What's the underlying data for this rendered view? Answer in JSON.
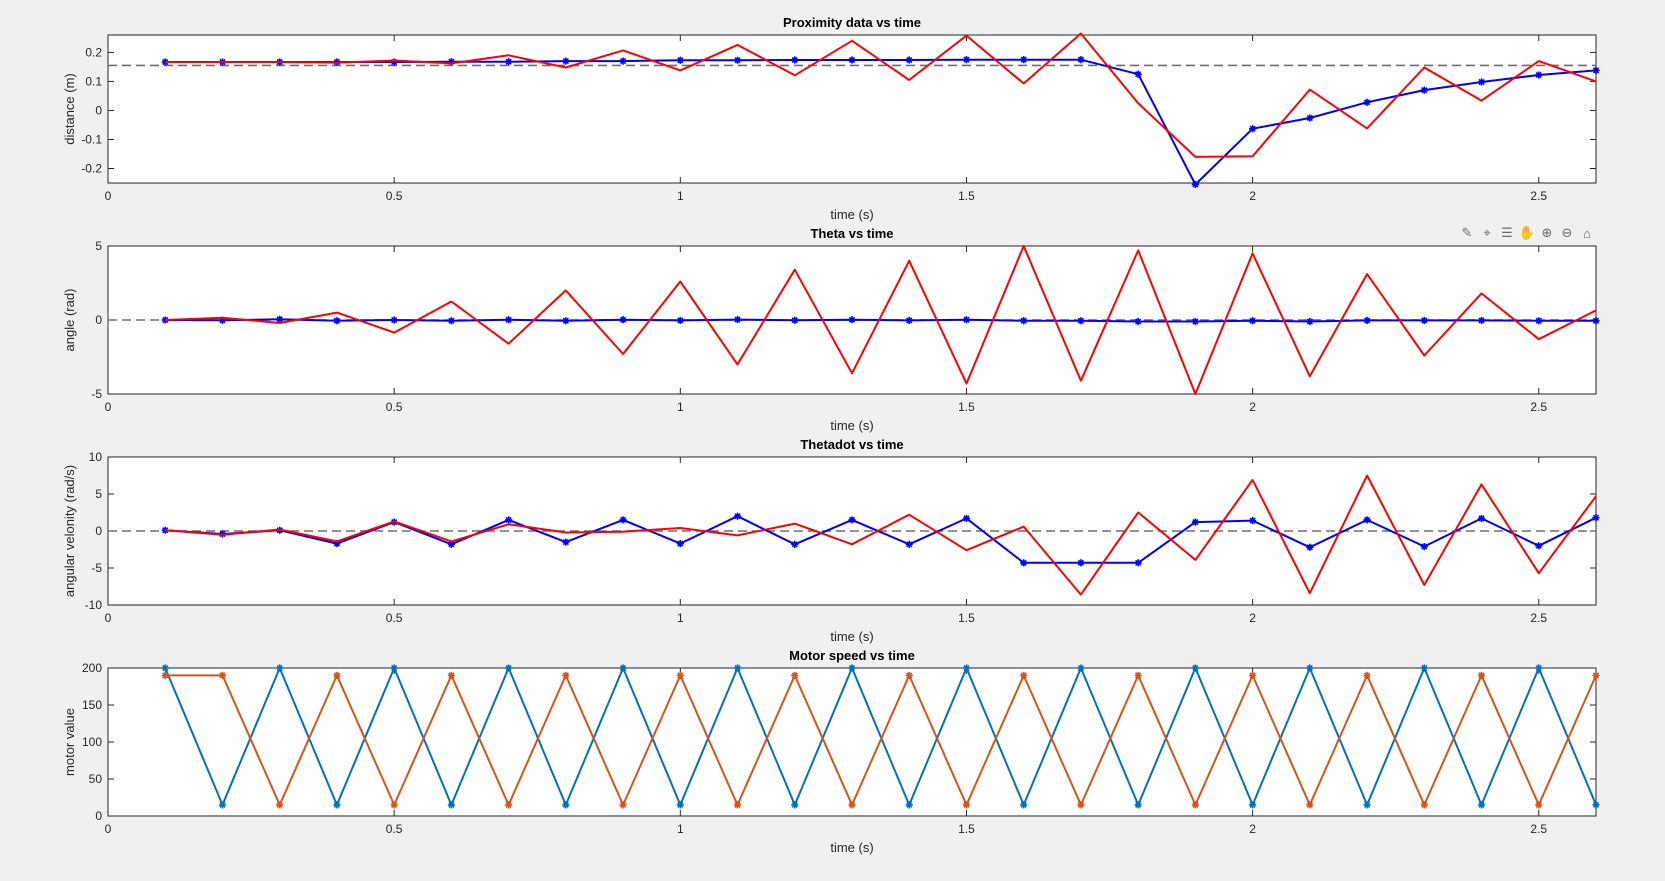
{
  "toolbar": {
    "icons": [
      "brush-icon",
      "datatip-icon",
      "legend-icon",
      "pan-icon",
      "zoom-in-icon",
      "zoom-out-icon",
      "home-icon"
    ]
  },
  "chart_data": [
    {
      "type": "line",
      "title": "Proximity data vs time",
      "xlabel": "time (s)",
      "ylabel": "distance (m)",
      "xlim": [
        0,
        2.6
      ],
      "ylim": [
        -0.25,
        0.26
      ],
      "xticks": [
        0,
        0.5,
        1,
        1.5,
        2,
        2.5
      ],
      "yticks": [
        -0.2,
        -0.1,
        0,
        0.1,
        0.2
      ],
      "xtick_labels": [
        "0",
        "0.5",
        "1",
        "1.5",
        "2",
        "2.5"
      ],
      "ytick_labels": [
        "-0.2",
        "-0.1",
        "0",
        "0.1",
        "0.2"
      ],
      "grid": false,
      "reference_line": {
        "y": 0.155,
        "style": "dashed",
        "color": "#6e6e6e"
      },
      "series": [
        {
          "color": "#0000ff",
          "marker": "star",
          "x": [
            0.1,
            0.2,
            0.3,
            0.4,
            0.5,
            0.6,
            0.7,
            0.8,
            0.9,
            1.0,
            1.1,
            1.2,
            1.3,
            1.4,
            1.5,
            1.6,
            1.7,
            1.8,
            1.9,
            2.0,
            2.1,
            2.2,
            2.3,
            2.4,
            2.5,
            2.6
          ],
          "y": [
            0.167,
            0.167,
            0.167,
            0.167,
            0.167,
            0.168,
            0.168,
            0.17,
            0.17,
            0.173,
            0.173,
            0.174,
            0.174,
            0.174,
            0.175,
            0.175,
            0.175,
            0.125,
            -0.255,
            -0.063,
            -0.026,
            0.028,
            0.07,
            0.098,
            0.122,
            0.138
          ]
        },
        {
          "color": "#ff0000",
          "marker": "none",
          "x": [
            0.1,
            0.2,
            0.3,
            0.4,
            0.5,
            0.6,
            0.7,
            0.8,
            0.9,
            1.0,
            1.1,
            1.2,
            1.3,
            1.4,
            1.5,
            1.6,
            1.7,
            1.8,
            1.9,
            2.0,
            2.1,
            2.2,
            2.3,
            2.4,
            2.5,
            2.6
          ],
          "y": [
            0.167,
            0.167,
            0.167,
            0.165,
            0.172,
            0.162,
            0.19,
            0.148,
            0.207,
            0.138,
            0.226,
            0.121,
            0.24,
            0.105,
            0.258,
            0.093,
            0.265,
            0.025,
            -0.16,
            -0.158,
            0.072,
            -0.062,
            0.148,
            0.034,
            0.17,
            0.1
          ]
        }
      ]
    },
    {
      "type": "line",
      "title": "Theta vs time",
      "xlabel": "time (s)",
      "ylabel": "angle (rad)",
      "xlim": [
        0,
        2.6
      ],
      "ylim": [
        -5,
        5
      ],
      "xticks": [
        0,
        0.5,
        1,
        1.5,
        2,
        2.5
      ],
      "yticks": [
        -5,
        0,
        5
      ],
      "xtick_labels": [
        "0",
        "0.5",
        "1",
        "1.5",
        "2",
        "2.5"
      ],
      "ytick_labels": [
        "-5",
        "0",
        "5"
      ],
      "grid": false,
      "reference_line": {
        "y": 0,
        "style": "dashed",
        "color": "#6e6e6e"
      },
      "series": [
        {
          "color": "#0000ff",
          "marker": "star",
          "x": [
            0.1,
            0.2,
            0.3,
            0.4,
            0.5,
            0.6,
            0.7,
            0.8,
            0.9,
            1.0,
            1.1,
            1.2,
            1.3,
            1.4,
            1.5,
            1.6,
            1.7,
            1.8,
            1.9,
            2.0,
            2.1,
            2.2,
            2.3,
            2.4,
            2.5,
            2.6
          ],
          "y": [
            0.0,
            -0.02,
            0.05,
            -0.05,
            0.0,
            -0.05,
            0.02,
            -0.05,
            0.02,
            -0.03,
            0.03,
            -0.02,
            0.02,
            -0.03,
            0.02,
            -0.05,
            -0.05,
            -0.1,
            -0.1,
            -0.05,
            -0.1,
            -0.03,
            -0.03,
            -0.03,
            -0.05,
            -0.05
          ]
        },
        {
          "color": "#ff0000",
          "marker": "none",
          "x": [
            0.1,
            0.2,
            0.3,
            0.4,
            0.5,
            0.6,
            0.7,
            0.8,
            0.9,
            1.0,
            1.1,
            1.2,
            1.3,
            1.4,
            1.5,
            1.6,
            1.7,
            1.8,
            1.9,
            2.0,
            2.1,
            2.2,
            2.3,
            2.4,
            2.5,
            2.6
          ],
          "y": [
            0.0,
            0.15,
            -0.2,
            0.5,
            -0.85,
            1.25,
            -1.6,
            2.0,
            -2.3,
            2.6,
            -3.0,
            3.4,
            -3.6,
            4.0,
            -4.3,
            5.0,
            -4.1,
            4.7,
            -5.0,
            4.5,
            -3.8,
            3.1,
            -2.4,
            1.8,
            -1.3,
            0.65
          ]
        }
      ]
    },
    {
      "type": "line",
      "title": "Thetadot vs time",
      "xlabel": "time (s)",
      "ylabel": "angular velonity (rad/s)",
      "xlim": [
        0,
        2.6
      ],
      "ylim": [
        -10,
        10
      ],
      "xticks": [
        0,
        0.5,
        1,
        1.5,
        2,
        2.5
      ],
      "yticks": [
        -10,
        -5,
        0,
        5,
        10
      ],
      "xtick_labels": [
        "0",
        "0.5",
        "1",
        "1.5",
        "2",
        "2.5"
      ],
      "ytick_labels": [
        "-10",
        "-5",
        "0",
        "5",
        "10"
      ],
      "grid": false,
      "reference_line": {
        "y": 0,
        "style": "dashed",
        "color": "#6e6e6e"
      },
      "series": [
        {
          "color": "#0000ff",
          "marker": "star",
          "x": [
            0.1,
            0.2,
            0.3,
            0.4,
            0.5,
            0.6,
            0.7,
            0.8,
            0.9,
            1.0,
            1.1,
            1.2,
            1.3,
            1.4,
            1.5,
            1.6,
            1.7,
            1.8,
            1.9,
            2.0,
            2.1,
            2.2,
            2.3,
            2.4,
            2.5,
            2.6
          ],
          "y": [
            0.1,
            -0.4,
            0.1,
            -1.7,
            1.2,
            -1.8,
            1.5,
            -1.5,
            1.5,
            -1.7,
            2.0,
            -1.8,
            1.5,
            -1.8,
            1.7,
            -4.3,
            -4.3,
            -4.3,
            1.2,
            1.4,
            -2.2,
            1.5,
            -2.1,
            1.7,
            -2.0,
            1.8
          ]
        },
        {
          "color": "#ff0000",
          "marker": "none",
          "x": [
            0.1,
            0.2,
            0.3,
            0.4,
            0.5,
            0.6,
            0.7,
            0.8,
            0.9,
            1.0,
            1.1,
            1.2,
            1.3,
            1.4,
            1.5,
            1.6,
            1.7,
            1.8,
            1.9,
            2.0,
            2.1,
            2.2,
            2.3,
            2.4,
            2.5,
            2.6
          ],
          "y": [
            0.1,
            -0.5,
            0.2,
            -1.4,
            1.3,
            -1.4,
            0.9,
            -0.2,
            -0.1,
            0.4,
            -0.6,
            1.0,
            -1.8,
            2.2,
            -2.6,
            0.6,
            -8.6,
            2.5,
            -3.9,
            6.9,
            -8.4,
            7.5,
            -7.3,
            6.3,
            -5.7,
            4.7
          ]
        }
      ]
    },
    {
      "type": "line",
      "title": "Motor speed vs time",
      "xlabel": "time (s)",
      "ylabel": "motor value",
      "xlim": [
        0,
        2.6
      ],
      "ylim": [
        0,
        200
      ],
      "xticks": [
        0,
        0.5,
        1,
        1.5,
        2,
        2.5
      ],
      "yticks": [
        0,
        50,
        100,
        150,
        200
      ],
      "xtick_labels": [
        "0",
        "0.5",
        "1",
        "1.5",
        "2",
        "2.5"
      ],
      "ytick_labels": [
        "0",
        "50",
        "100",
        "150",
        "200"
      ],
      "grid": false,
      "series": [
        {
          "color": "#0072bd",
          "marker": "star",
          "x": [
            0.1,
            0.2,
            0.3,
            0.4,
            0.5,
            0.6,
            0.7,
            0.8,
            0.9,
            1.0,
            1.1,
            1.2,
            1.3,
            1.4,
            1.5,
            1.6,
            1.7,
            1.8,
            1.9,
            2.0,
            2.1,
            2.2,
            2.3,
            2.4,
            2.5,
            2.6
          ],
          "y": [
            200,
            15,
            200,
            15,
            200,
            15,
            200,
            15,
            200,
            15,
            200,
            15,
            200,
            15,
            200,
            15,
            200,
            15,
            200,
            15,
            200,
            15,
            200,
            15,
            200,
            15
          ]
        },
        {
          "color": "#d95319",
          "marker": "star",
          "x": [
            0.1,
            0.2,
            0.3,
            0.4,
            0.5,
            0.6,
            0.7,
            0.8,
            0.9,
            1.0,
            1.1,
            1.2,
            1.3,
            1.4,
            1.5,
            1.6,
            1.7,
            1.8,
            1.9,
            2.0,
            2.1,
            2.2,
            2.3,
            2.4,
            2.5,
            2.6
          ],
          "y": [
            190,
            190,
            15,
            190,
            15,
            190,
            15,
            190,
            15,
            190,
            15,
            190,
            15,
            190,
            15,
            190,
            15,
            190,
            15,
            190,
            15,
            190,
            15,
            190,
            15,
            190
          ]
        }
      ]
    }
  ]
}
